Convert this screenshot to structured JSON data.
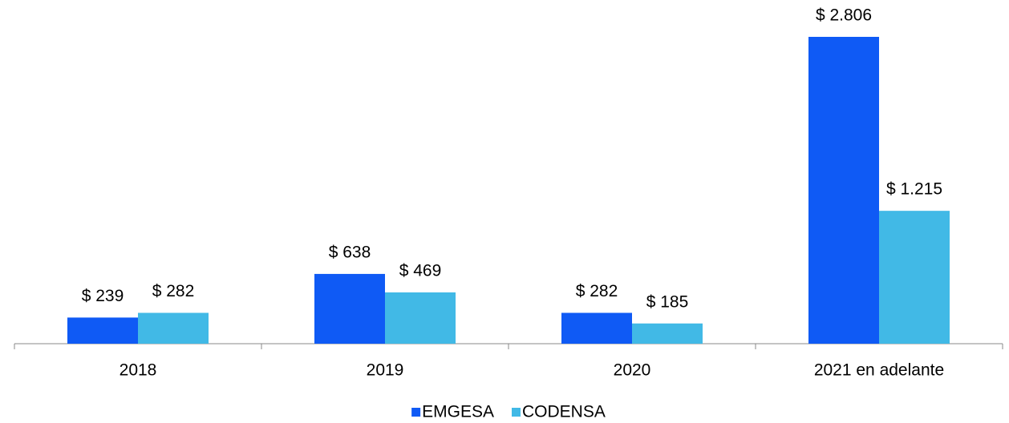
{
  "chart_data": {
    "type": "bar",
    "categories": [
      "2018",
      "2019",
      "2020",
      "2021 en adelante"
    ],
    "series": [
      {
        "name": "EMGESA",
        "color": "#0f5af5",
        "values": [
          239,
          638,
          282,
          2806
        ],
        "value_labels": [
          "$ 239",
          "$ 638",
          "$ 282",
          "$ 2.806"
        ]
      },
      {
        "name": "CODENSA",
        "color": "#41b9e6",
        "values": [
          282,
          469,
          185,
          1215
        ],
        "value_labels": [
          "$ 282",
          "$ 469",
          "$ 185",
          "$ 1.215"
        ]
      }
    ],
    "legend": "bottom"
  }
}
